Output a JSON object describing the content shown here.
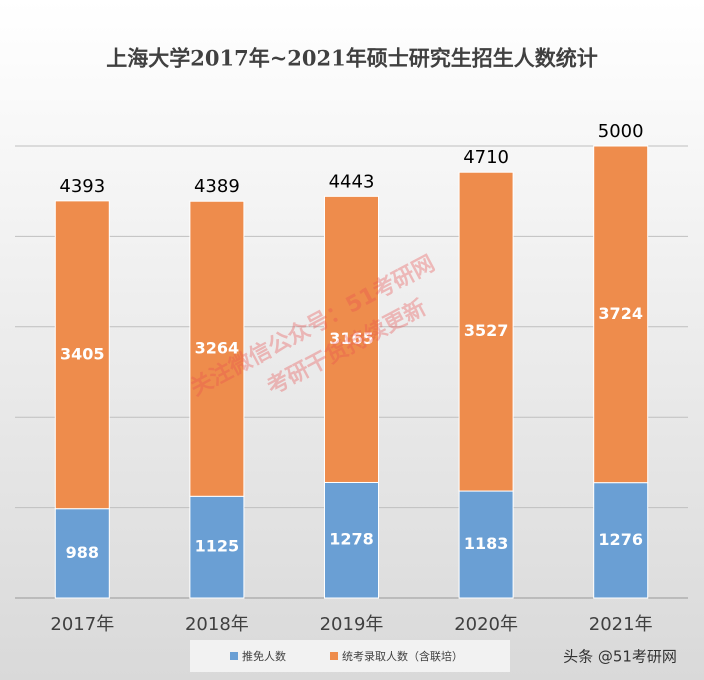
{
  "chart_data": {
    "type": "stacked_bar",
    "title": "上海大学2017年~2021年硕士研究生招生人数统计",
    "categories": [
      "2017年",
      "2018年",
      "2019年",
      "2020年",
      "2021年"
    ],
    "series": [
      {
        "name": "推免人数",
        "color": "#6a9fd4",
        "values": [
          988,
          1125,
          1278,
          1183,
          1276
        ]
      },
      {
        "name": "统考录取人数（含联培）",
        "color": "#ee8c4c",
        "values": [
          3405,
          3264,
          3165,
          3527,
          3724
        ]
      }
    ],
    "totals": [
      4393,
      4389,
      4443,
      4710,
      5000
    ],
    "ylim": [
      0,
      5000
    ],
    "yticks": [
      0,
      1000,
      2000,
      3000,
      4000,
      5000
    ],
    "grid": true,
    "legend": "bottom",
    "annotations": [
      "关注微信公众号：51考研网",
      "考研干货持续更新",
      "头条 @51考研网"
    ]
  }
}
